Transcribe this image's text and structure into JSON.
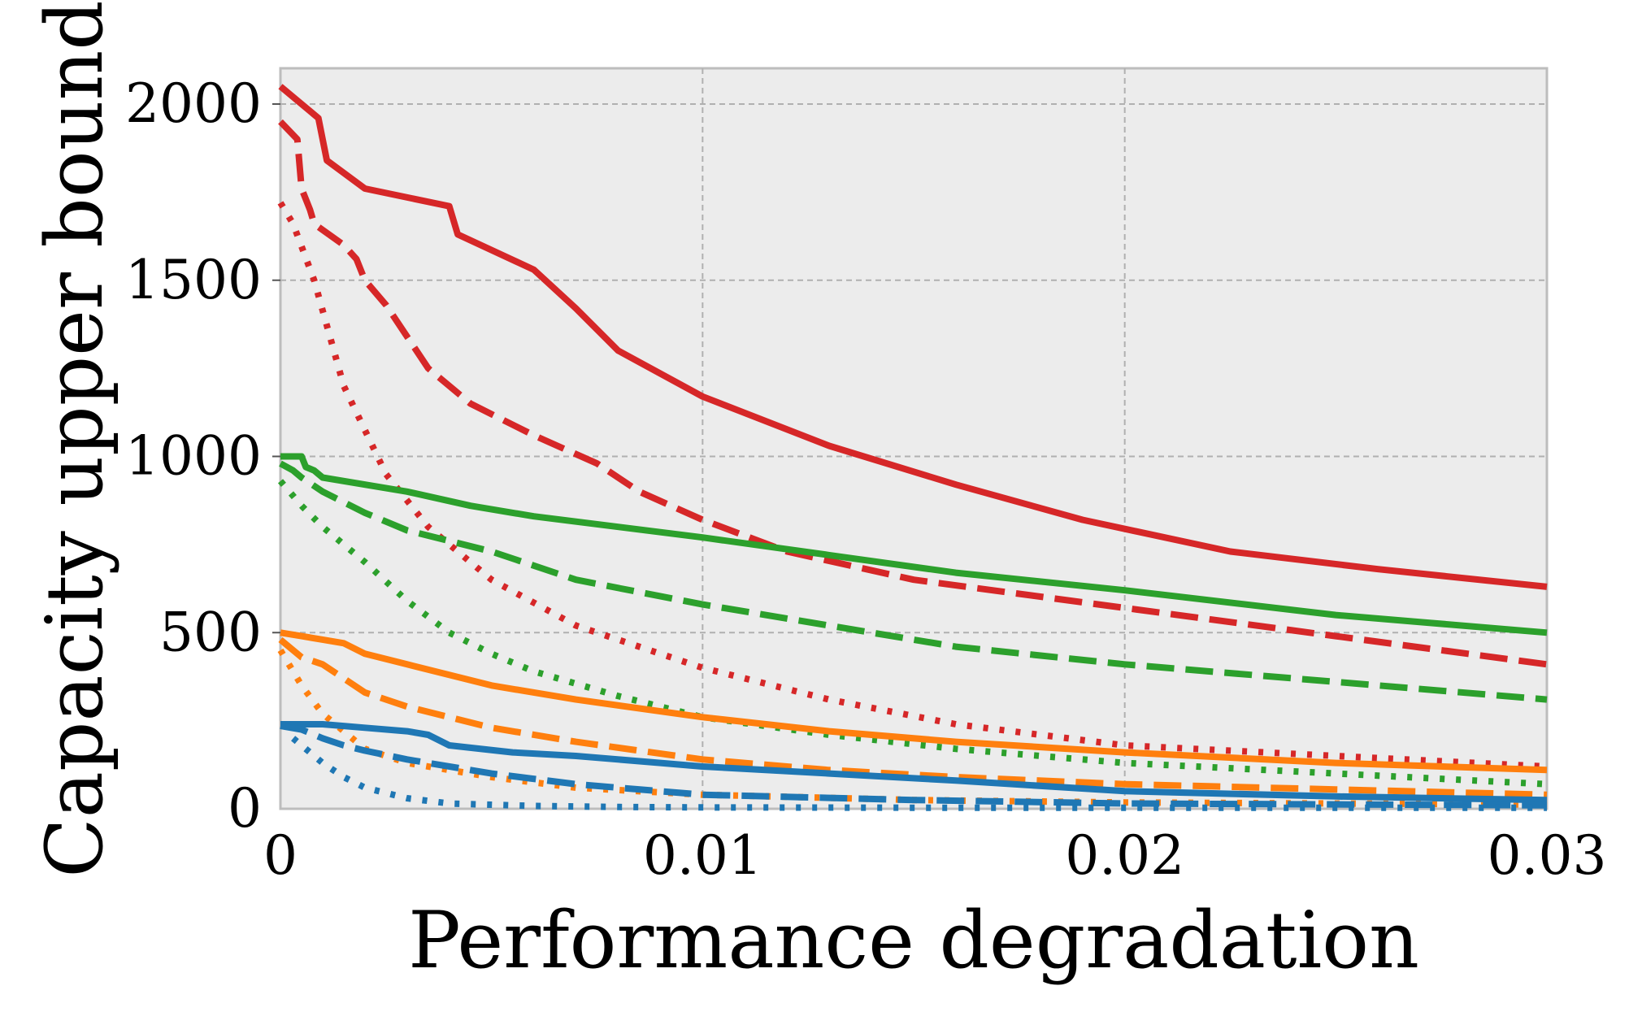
{
  "chart_data": {
    "type": "line",
    "title": "",
    "xlabel": "Performance degradation",
    "ylabel": "Capacity upper bound",
    "xlim": [
      0,
      0.03
    ],
    "ylim": [
      0,
      2100
    ],
    "grid": true,
    "legend": "none",
    "xticks": [
      0,
      0.01,
      0.02,
      0.03
    ],
    "xtick_labels": [
      "0",
      "0.01",
      "0.02",
      "0.03"
    ],
    "yticks": [
      0,
      500,
      1000,
      1500,
      2000
    ],
    "ytick_labels": [
      "0",
      "500",
      "1000",
      "1500",
      "2000"
    ],
    "series": [
      {
        "name": "red-solid",
        "color": "#d62728",
        "style": "solid",
        "x": [
          0,
          0.0009,
          0.001,
          0.0011,
          0.002,
          0.004,
          0.0042,
          0.006,
          0.007,
          0.008,
          0.01,
          0.013,
          0.016,
          0.019,
          0.0225,
          0.026,
          0.03
        ],
        "y": [
          2050,
          1960,
          1900,
          1840,
          1760,
          1710,
          1630,
          1530,
          1420,
          1300,
          1170,
          1030,
          920,
          820,
          730,
          680,
          630
        ]
      },
      {
        "name": "red-dashed",
        "color": "#d62728",
        "style": "dashed",
        "x": [
          0,
          0.0004,
          0.0005,
          0.0007,
          0.0008,
          0.0015,
          0.0018,
          0.002,
          0.0025,
          0.0035,
          0.0045,
          0.006,
          0.0075,
          0.0085,
          0.01,
          0.012,
          0.015,
          0.02,
          0.025,
          0.03
        ],
        "y": [
          1950,
          1900,
          1760,
          1700,
          1660,
          1600,
          1560,
          1500,
          1430,
          1250,
          1150,
          1060,
          980,
          900,
          820,
          730,
          650,
          570,
          490,
          410
        ]
      },
      {
        "name": "red-dotted",
        "color": "#d62728",
        "style": "dotted",
        "x": [
          0,
          0.0003,
          0.0008,
          0.0015,
          0.0025,
          0.0035,
          0.005,
          0.007,
          0.01,
          0.013,
          0.016,
          0.02,
          0.025,
          0.03
        ],
        "y": [
          1720,
          1660,
          1500,
          1200,
          950,
          800,
          650,
          520,
          400,
          310,
          240,
          180,
          150,
          120
        ]
      },
      {
        "name": "green-solid",
        "color": "#2ca02c",
        "style": "solid",
        "x": [
          0,
          0.0005,
          0.0006,
          0.0008,
          0.001,
          0.003,
          0.0045,
          0.006,
          0.008,
          0.01,
          0.013,
          0.016,
          0.02,
          0.025,
          0.03
        ],
        "y": [
          1000,
          1000,
          970,
          960,
          940,
          900,
          860,
          830,
          800,
          770,
          720,
          670,
          620,
          550,
          500
        ]
      },
      {
        "name": "green-dashed",
        "color": "#2ca02c",
        "style": "dashed",
        "x": [
          0,
          0.0003,
          0.0005,
          0.001,
          0.002,
          0.003,
          0.005,
          0.007,
          0.01,
          0.013,
          0.016,
          0.02,
          0.025,
          0.03
        ],
        "y": [
          980,
          960,
          940,
          900,
          840,
          790,
          730,
          650,
          580,
          520,
          460,
          410,
          360,
          310
        ]
      },
      {
        "name": "green-dotted",
        "color": "#2ca02c",
        "style": "dotted",
        "x": [
          0,
          0.0005,
          0.001,
          0.002,
          0.003,
          0.004,
          0.005,
          0.006,
          0.008,
          0.01,
          0.013,
          0.016,
          0.02,
          0.025,
          0.03
        ],
        "y": [
          930,
          860,
          800,
          700,
          590,
          500,
          440,
          390,
          320,
          260,
          210,
          170,
          130,
          100,
          70
        ]
      },
      {
        "name": "orange-solid",
        "color": "#ff7f0e",
        "style": "solid",
        "x": [
          0,
          0.0005,
          0.001,
          0.0015,
          0.002,
          0.003,
          0.005,
          0.007,
          0.01,
          0.013,
          0.016,
          0.02,
          0.025,
          0.03
        ],
        "y": [
          500,
          490,
          480,
          470,
          440,
          410,
          350,
          310,
          260,
          220,
          190,
          160,
          130,
          110
        ]
      },
      {
        "name": "orange-dashed",
        "color": "#ff7f0e",
        "style": "dashed",
        "x": [
          0,
          0.0005,
          0.001,
          0.002,
          0.003,
          0.005,
          0.007,
          0.01,
          0.013,
          0.016,
          0.02,
          0.025,
          0.03
        ],
        "y": [
          480,
          430,
          410,
          330,
          290,
          230,
          190,
          140,
          110,
          90,
          70,
          55,
          40
        ]
      },
      {
        "name": "orange-dotted",
        "color": "#ff7f0e",
        "style": "dotted",
        "x": [
          0,
          0.0002,
          0.0005,
          0.001,
          0.0015,
          0.002,
          0.003,
          0.005,
          0.007,
          0.01,
          0.015,
          0.02,
          0.03
        ],
        "y": [
          450,
          410,
          350,
          270,
          220,
          170,
          130,
          90,
          60,
          40,
          25,
          18,
          12
        ]
      },
      {
        "name": "blue-solid",
        "color": "#1f77b4",
        "style": "solid",
        "x": [
          0,
          0.001,
          0.002,
          0.003,
          0.0035,
          0.004,
          0.0055,
          0.007,
          0.009,
          0.01,
          0.013,
          0.016,
          0.02,
          0.025,
          0.03
        ],
        "y": [
          240,
          240,
          230,
          220,
          210,
          180,
          160,
          150,
          130,
          120,
          100,
          80,
          50,
          35,
          25
        ]
      },
      {
        "name": "blue-dashed",
        "color": "#1f77b4",
        "style": "dashed",
        "x": [
          0,
          0.0005,
          0.001,
          0.0015,
          0.002,
          0.003,
          0.005,
          0.007,
          0.01,
          0.015,
          0.02,
          0.03
        ],
        "y": [
          235,
          225,
          200,
          180,
          165,
          140,
          100,
          70,
          40,
          25,
          15,
          10
        ]
      },
      {
        "name": "blue-dotted",
        "color": "#1f77b4",
        "style": "dotted",
        "x": [
          0.0003,
          0.0005,
          0.001,
          0.0015,
          0.002,
          0.003,
          0.004,
          0.006,
          0.008,
          0.01,
          0.015,
          0.02,
          0.03
        ],
        "y": [
          200,
          180,
          130,
          90,
          60,
          30,
          15,
          8,
          5,
          4,
          3,
          3,
          3
        ]
      }
    ]
  }
}
